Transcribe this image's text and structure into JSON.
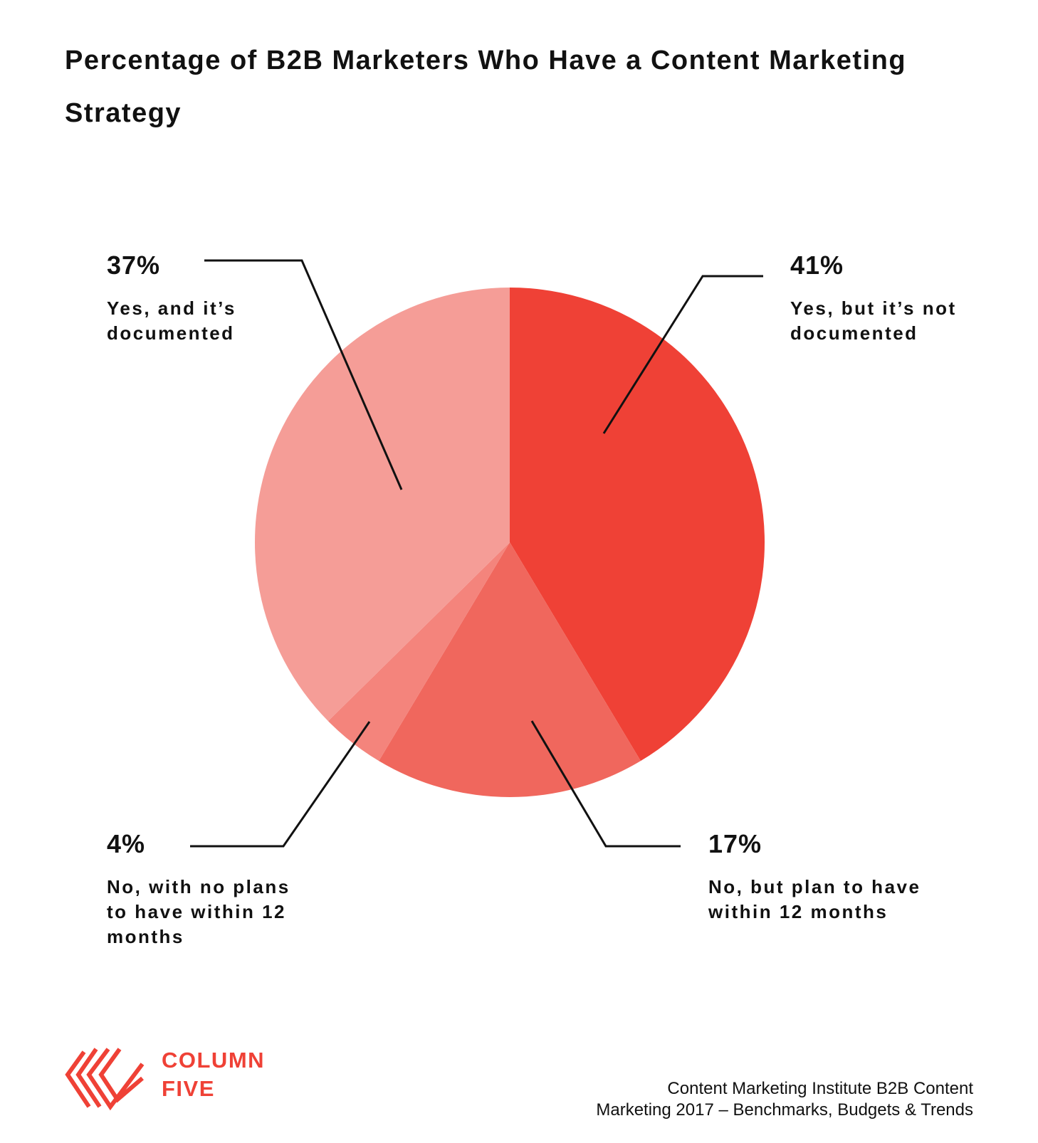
{
  "chart_data": {
    "type": "pie",
    "title": "Percentage of B2B Marketers Who Have a Content Marketing Strategy",
    "categories": [
      "Yes, but it’s not documented",
      "No, but plan to have within 12 months",
      "No, with no plans to have within 12 months",
      "Yes, and it’s documented"
    ],
    "values": [
      41,
      17,
      4,
      37
    ],
    "value_labels": [
      "41%",
      "17%",
      "4%",
      "37%"
    ],
    "colors": [
      "#ef4136",
      "#f0675d",
      "#f4847c",
      "#f59d97"
    ]
  },
  "logo": {
    "line1": "COLUMN",
    "line2": "FIVE"
  },
  "source": [
    "Content Marketing Institute B2B Content",
    "Marketing 2017 – Benchmarks, Budgets & Trends"
  ]
}
